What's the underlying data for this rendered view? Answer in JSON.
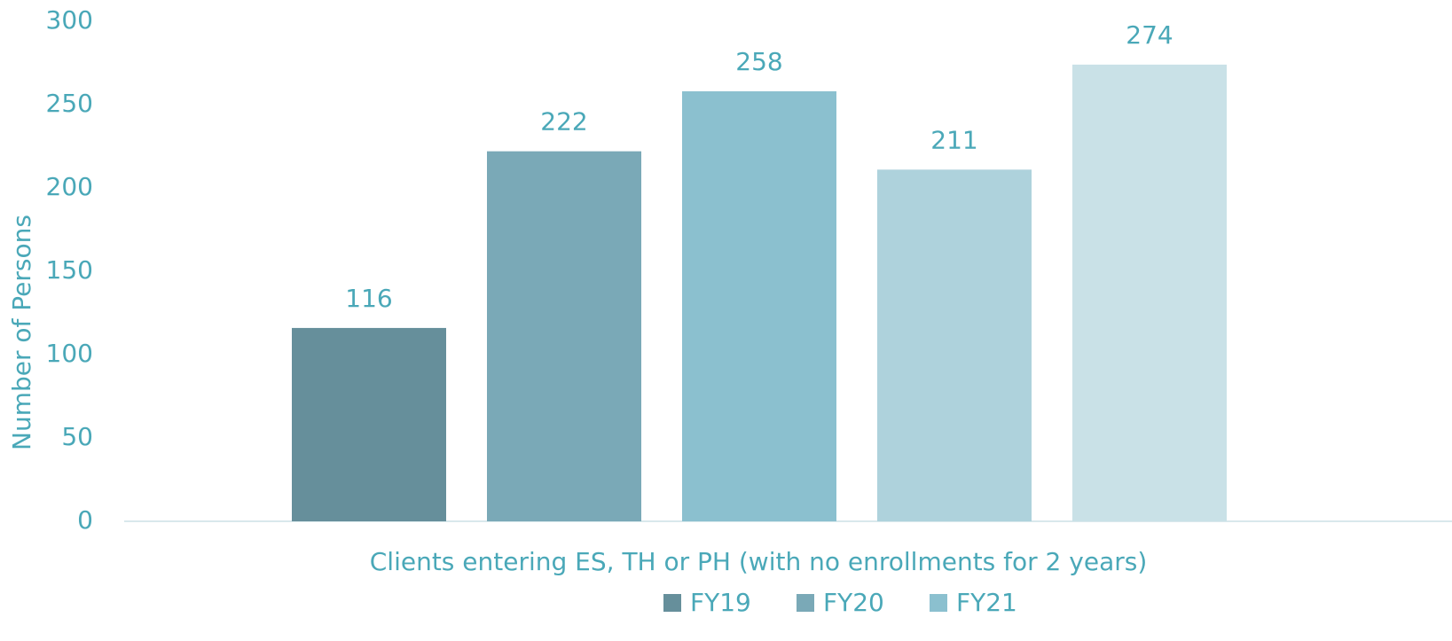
{
  "chart_data": {
    "type": "bar",
    "categories": [
      "Clients entering ES, TH or PH (with no enrollments for 2 years)"
    ],
    "y_label": "Number of Persons",
    "series": [
      {
        "name": "FY19",
        "color": "#668f9b",
        "values": [
          116
        ]
      },
      {
        "name": "FY20",
        "color": "#7aa9b7",
        "values": [
          222
        ]
      },
      {
        "name": "FY21",
        "color": "#8bc0cf",
        "values": [
          258
        ]
      },
      {
        "name": null,
        "color": "#aed2dc",
        "values": [
          211
        ]
      },
      {
        "name": null,
        "color": "#c9e1e7",
        "values": [
          274
        ]
      }
    ],
    "ylim": [
      0,
      300
    ],
    "yticks": [
      0,
      50,
      100,
      150,
      200,
      250,
      300
    ],
    "grid": false,
    "data_labels": true
  }
}
